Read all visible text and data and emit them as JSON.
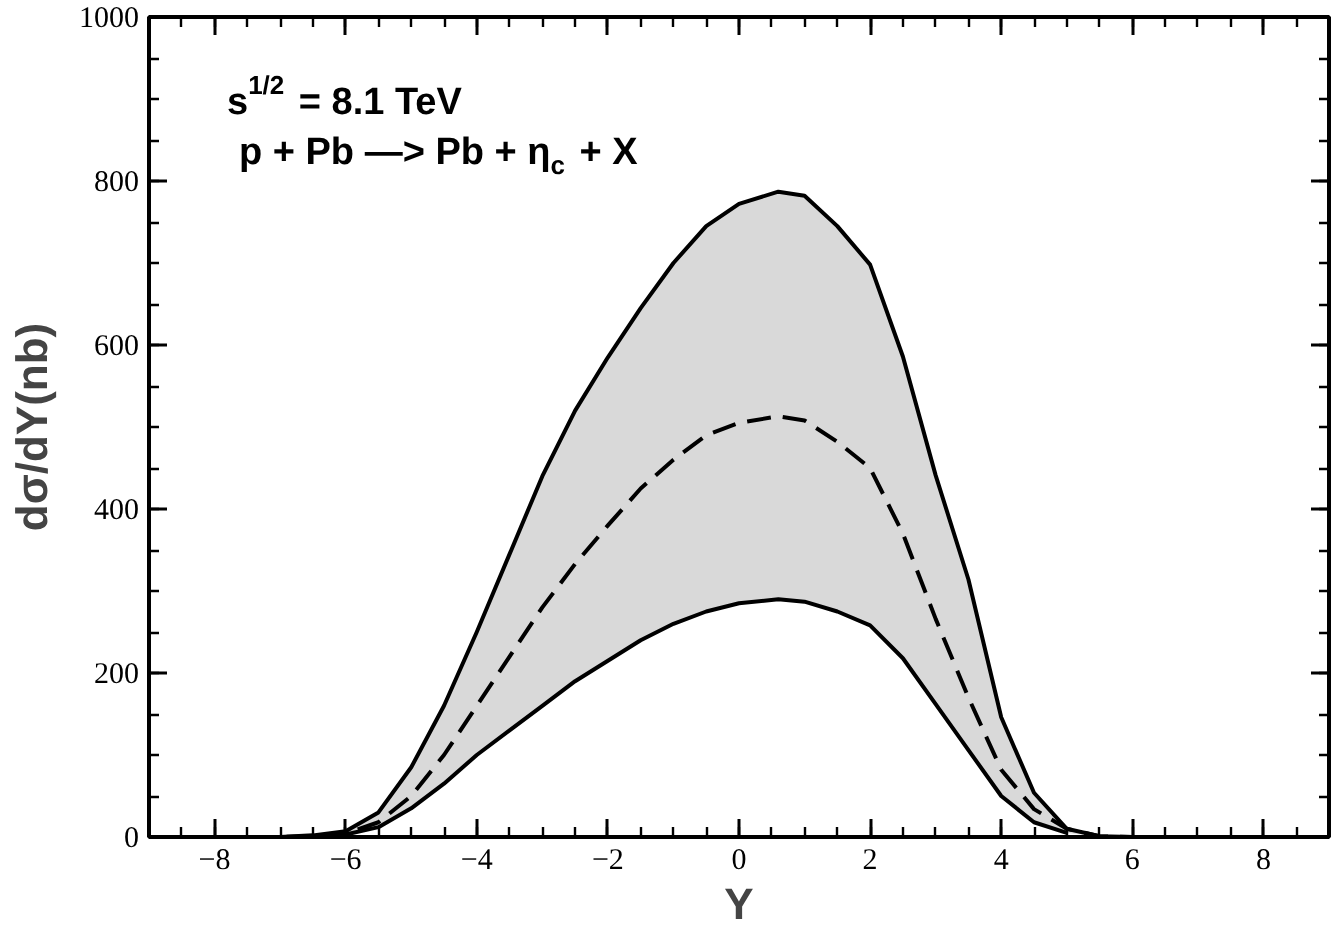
{
  "chart_data": {
    "type": "line",
    "xlabel": "Y",
    "ylabel": "dσ/dY(nb)",
    "annotations": [
      "s$^{1/2}$ = 8.1 TeV",
      "p + Pb —> Pb + η$_{c}$ + X"
    ],
    "x": [
      -8,
      -7,
      -6.5,
      -6,
      -5.5,
      -5,
      -4.5,
      -4,
      -3.5,
      -3,
      -2.5,
      -2,
      -1.5,
      -1,
      -0.5,
      0,
      0.6,
      1,
      1.5,
      2,
      2.5,
      3,
      3.5,
      4,
      4.5,
      5,
      5.5,
      6,
      7,
      8
    ],
    "series": [
      {
        "color": "#000000",
        "line_style": "solid",
        "values": [
          0,
          0,
          2,
          7,
          30,
          85,
          160,
          250,
          345,
          440,
          520,
          585,
          645,
          700,
          745,
          772,
          787,
          782,
          745,
          698,
          586,
          441,
          314,
          146,
          54,
          10,
          1,
          0,
          0,
          0
        ]
      },
      {
        "color": "#000000",
        "line_style": "solid",
        "x": [
          -6,
          -5.5,
          -5,
          -4.5,
          -4,
          -3.5,
          -3,
          -2.5,
          -2,
          -1.5,
          -1,
          -0.5,
          0,
          0.6,
          1,
          1.5,
          2,
          2.5,
          3,
          3.5,
          4,
          4.5,
          5
        ],
        "values": [
          3,
          12,
          35,
          65,
          100,
          130,
          160,
          190,
          215,
          240,
          260,
          275,
          285,
          290,
          287,
          275,
          258,
          218,
          162,
          106,
          50,
          18,
          5
        ]
      },
      {
        "color": "#000000",
        "line_style": "dashed",
        "values": [
          0,
          0,
          1,
          4,
          18,
          50,
          100,
          160,
          220,
          280,
          333,
          380,
          425,
          460,
          490,
          505,
          513,
          508,
          482,
          450,
          370,
          266,
          170,
          82,
          34,
          10,
          1,
          0,
          0,
          0
        ],
        "lower": [
          0,
          0,
          1,
          3,
          12,
          35,
          65,
          100,
          130,
          160,
          190,
          215,
          240,
          260,
          275,
          285,
          290,
          287,
          275,
          258,
          218,
          162,
          106,
          50,
          18,
          5,
          1,
          0,
          0,
          0
        ],
        "upper": [
          0,
          0,
          2,
          7,
          30,
          85,
          160,
          250,
          345,
          440,
          520,
          585,
          645,
          700,
          745,
          772,
          787,
          782,
          745,
          698,
          586,
          441,
          314,
          146,
          54,
          10,
          1,
          0,
          0,
          0
        ]
      }
    ],
    "xlim": [
      -9,
      9
    ],
    "ylim": [
      0,
      1000
    ],
    "xticks": [
      -8,
      -6,
      -4,
      -2,
      0,
      2,
      4,
      6,
      8
    ],
    "yticks": [
      0,
      200,
      400,
      600,
      800,
      1000
    ]
  }
}
